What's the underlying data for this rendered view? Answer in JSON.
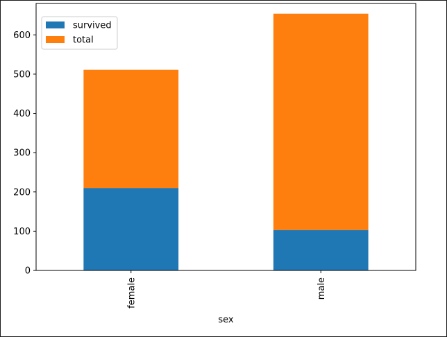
{
  "chart_data": {
    "type": "bar",
    "stacked": true,
    "categories": [
      "female",
      "male"
    ],
    "series": [
      {
        "name": "survived",
        "values": [
          210,
          103
        ],
        "color": "#1f77b4"
      },
      {
        "name": "total",
        "values": [
          301,
          551
        ],
        "color": "#ff7f0e"
      }
    ],
    "xlabel": "sex",
    "ylabel": "",
    "ylim": [
      0,
      680
    ],
    "yticks": [
      0,
      100,
      200,
      300,
      400,
      500,
      600
    ],
    "grid": false,
    "legend": "top-left"
  }
}
